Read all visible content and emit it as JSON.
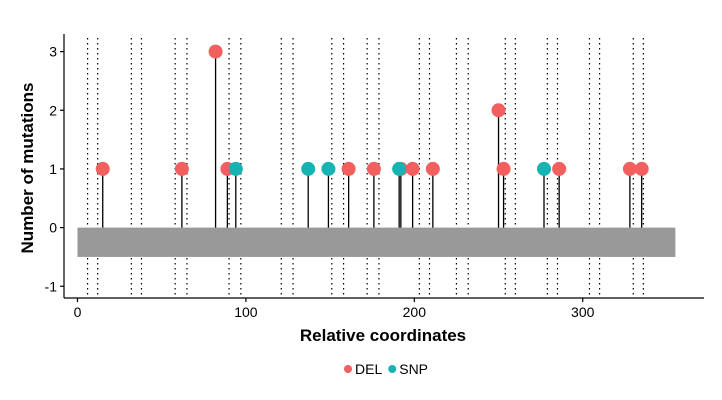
{
  "chart_data": {
    "type": "scatter",
    "subtype": "lollipop",
    "xlabel": "Relative coordinates",
    "ylabel": "Number of mutations",
    "xlim": [
      -8,
      372
    ],
    "ylim": [
      -1.2,
      3.3
    ],
    "x_ticks": [
      0,
      100,
      200,
      300
    ],
    "y_ticks": [
      -1,
      0,
      1,
      2,
      3
    ],
    "grid": false,
    "colors": {
      "DEL": "#F15F5F",
      "SNP": "#17B3B3",
      "domain": "#999999",
      "guide": "#000000"
    },
    "domain_bar": {
      "x_start": 0,
      "x_end": 355,
      "y_low": -0.5,
      "y_high": 0.0
    },
    "guide_lines_x": [
      6,
      12,
      32,
      38,
      58,
      65,
      90,
      97,
      121,
      128,
      151,
      158,
      172,
      179,
      203,
      209,
      225,
      232,
      254,
      260,
      279,
      285,
      304,
      310,
      330,
      336
    ],
    "series": [
      {
        "name": "DEL",
        "points": [
          {
            "x": 15,
            "y": 1
          },
          {
            "x": 62,
            "y": 1
          },
          {
            "x": 82,
            "y": 3
          },
          {
            "x": 89,
            "y": 1
          },
          {
            "x": 161,
            "y": 1
          },
          {
            "x": 176,
            "y": 1
          },
          {
            "x": 192,
            "y": 1
          },
          {
            "x": 199,
            "y": 1
          },
          {
            "x": 211,
            "y": 1
          },
          {
            "x": 250,
            "y": 2
          },
          {
            "x": 253,
            "y": 1
          },
          {
            "x": 286,
            "y": 1
          },
          {
            "x": 328,
            "y": 1
          },
          {
            "x": 335,
            "y": 1
          }
        ]
      },
      {
        "name": "SNP",
        "points": [
          {
            "x": 94,
            "y": 1
          },
          {
            "x": 137,
            "y": 1
          },
          {
            "x": 149,
            "y": 1
          },
          {
            "x": 191,
            "y": 1
          },
          {
            "x": 277,
            "y": 1
          }
        ]
      }
    ],
    "legend": {
      "position": "bottom",
      "entries": [
        "DEL",
        "SNP"
      ]
    }
  }
}
